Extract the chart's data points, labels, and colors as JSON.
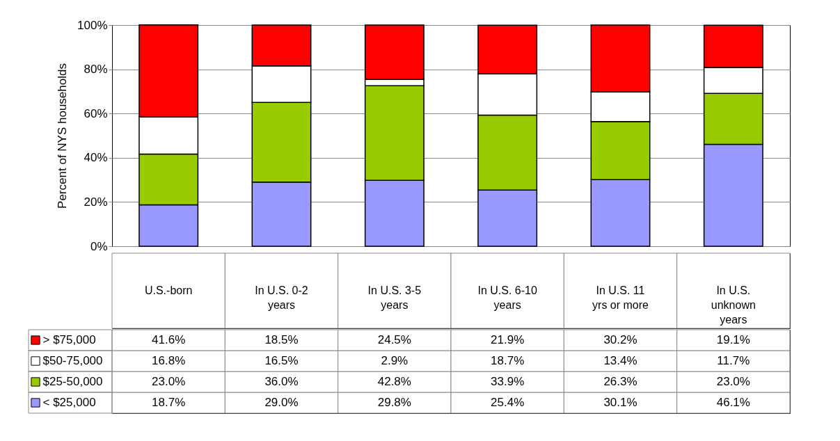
{
  "chart_data": {
    "type": "bar",
    "stacked": true,
    "ylabel": "Percent of NYS households",
    "categories": [
      "U.S.-born",
      "In U.S. 0-2 years",
      "In U.S. 3-5 years",
      "In U.S. 6-10 years",
      "In U.S. 11 yrs or more",
      "In U.S. unknown years"
    ],
    "series": [
      {
        "name": "< $25,000",
        "color": "#9999ff",
        "values": [
          18.7,
          29.0,
          29.8,
          25.4,
          30.1,
          46.1
        ],
        "value_labels": [
          "18.7%",
          "29.0%",
          "29.8%",
          "25.4%",
          "30.1%",
          "46.1%"
        ]
      },
      {
        "name": "$25-50,000",
        "color": "#99cc00",
        "values": [
          23.0,
          36.0,
          42.8,
          33.9,
          26.3,
          23.0
        ],
        "value_labels": [
          "23.0%",
          "36.0%",
          "42.8%",
          "33.9%",
          "26.3%",
          "23.0%"
        ]
      },
      {
        "name": "$50-75,000",
        "color": "#ffffff",
        "values": [
          16.8,
          16.5,
          2.9,
          18.7,
          13.4,
          11.7
        ],
        "value_labels": [
          "16.8%",
          "16.5%",
          "2.9%",
          "18.7%",
          "13.4%",
          "11.7%"
        ]
      },
      {
        "name": "> $75,000",
        "color": "#ff0000",
        "values": [
          41.6,
          18.5,
          24.5,
          21.9,
          30.2,
          19.1
        ],
        "value_labels": [
          "41.6%",
          "18.5%",
          "24.5%",
          "21.9%",
          "30.2%",
          "19.1%"
        ]
      }
    ],
    "ylim": [
      0,
      100
    ],
    "yticks": [
      {
        "value": 0,
        "label": "0%"
      },
      {
        "value": 20,
        "label": "20%"
      },
      {
        "value": 40,
        "label": "40%"
      },
      {
        "value": 60,
        "label": "60%"
      },
      {
        "value": 80,
        "label": "80%"
      },
      {
        "value": 100,
        "label": "100%"
      }
    ],
    "grid": "y",
    "legend": "bottom left"
  }
}
